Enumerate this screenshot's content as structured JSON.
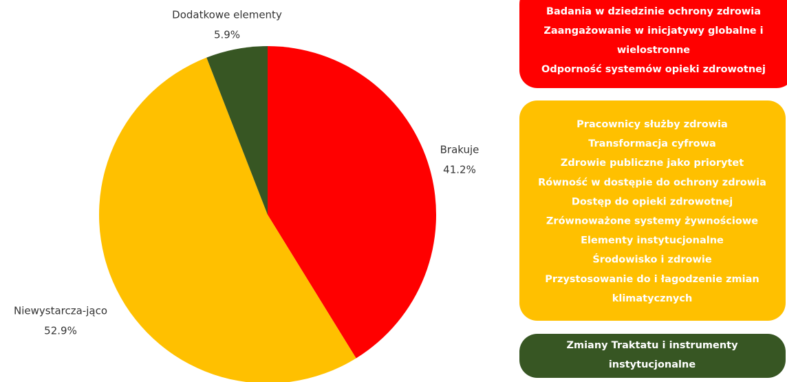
{
  "chart_data": {
    "type": "pie",
    "categories": [
      "Brakuje",
      "Niewystarcza-jąco",
      "Dodatkowe elementy"
    ],
    "values": [
      41.2,
      52.9,
      5.9
    ],
    "value_labels": [
      "41.2%",
      "52.9%",
      "5.9%"
    ],
    "colors": [
      "#ff0000",
      "#ffc000",
      "#375623"
    ]
  },
  "boxes": [
    {
      "lines": [
        "Badania w dziedzinie ochrony zdrowia",
        "Zaangażowanie w inicjatywy globalne i",
        "wielostronne",
        "Odporność systemów opieki zdrowotnej"
      ]
    },
    {
      "lines": [
        "Pracownicy służby zdrowia",
        "Transformacja cyfrowa",
        "Zdrowie publiczne jako priorytet",
        "Równość w dostępie do ochrony zdrowia",
        "Dostęp do opieki zdrowotnej",
        "Zrównoważone systemy żywnościowe",
        "Elementy instytucjonalne",
        "Środowisko i zdrowie",
        "Przystosowanie do i łagodzenie zmian",
        "klimatycznych"
      ]
    },
    {
      "lines": [
        "Zmiany Traktatu i instrumenty",
        "instytucjonalne"
      ]
    }
  ]
}
